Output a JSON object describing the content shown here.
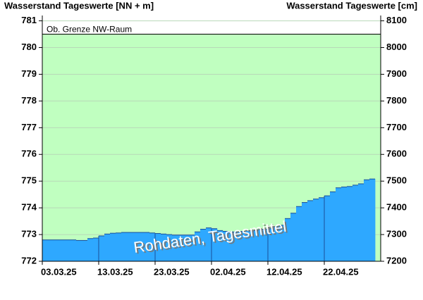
{
  "chart_data": {
    "type": "step-area",
    "y_title": "Wasserstand Tageswerte [NN + m]",
    "y2_title": "Wasserstand Tageswerte [cm]",
    "watermark": "Rohdaten, Tagesmittel",
    "threshold": {
      "value": 780.5,
      "label": "Ob. Grenze NW-Raum",
      "color": "#c0ffc0"
    },
    "color": "#2ea8ff",
    "x": [
      "03.03.25",
      "04.03.25",
      "05.03.25",
      "06.03.25",
      "07.03.25",
      "08.03.25",
      "09.03.25",
      "10.03.25",
      "11.03.25",
      "12.03.25",
      "13.03.25",
      "14.03.25",
      "15.03.25",
      "16.03.25",
      "17.03.25",
      "18.03.25",
      "19.03.25",
      "20.03.25",
      "21.03.25",
      "22.03.25",
      "23.03.25",
      "24.03.25",
      "25.03.25",
      "26.03.25",
      "27.03.25",
      "28.03.25",
      "29.03.25",
      "30.03.25",
      "31.03.25",
      "01.04.25",
      "02.04.25",
      "03.04.25",
      "04.04.25",
      "05.04.25",
      "06.04.25",
      "07.04.25",
      "08.04.25",
      "09.04.25",
      "10.04.25",
      "11.04.25",
      "12.04.25",
      "13.04.25",
      "14.04.25",
      "15.04.25",
      "16.04.25",
      "17.04.25",
      "18.04.25",
      "19.04.25",
      "20.04.25",
      "21.04.25",
      "22.04.25",
      "23.04.25",
      "24.04.25",
      "25.04.25",
      "26.04.25",
      "27.04.25",
      "28.04.25",
      "29.04.25",
      "30.04.25"
    ],
    "values": [
      772.8,
      772.8,
      772.8,
      772.8,
      772.8,
      772.8,
      772.78,
      772.78,
      772.85,
      772.87,
      772.95,
      773.02,
      773.05,
      773.06,
      773.08,
      773.08,
      773.08,
      773.08,
      773.08,
      773.06,
      773.04,
      773.02,
      773.0,
      772.98,
      772.98,
      772.98,
      772.98,
      773.1,
      773.2,
      773.25,
      773.22,
      773.15,
      773.12,
      773.1,
      773.1,
      773.12,
      773.15,
      773.15,
      773.18,
      773.2,
      773.22,
      773.3,
      773.35,
      773.6,
      773.8,
      774.05,
      774.2,
      774.27,
      774.33,
      774.38,
      774.45,
      774.6,
      774.75,
      774.78,
      774.8,
      774.85,
      774.9,
      775.05,
      775.08
    ],
    "xlim": [
      "03.03.25",
      "02.05.25"
    ],
    "xticks": [
      "03.03.25",
      "13.03.25",
      "23.03.25",
      "02.04.25",
      "12.04.25",
      "22.04.25"
    ],
    "ylim": [
      772,
      781.2
    ],
    "yticks": [
      772,
      773,
      774,
      775,
      776,
      777,
      778,
      779,
      780,
      781
    ],
    "y2lim": [
      7200,
      8120
    ],
    "y2ticks": [
      7200,
      7300,
      7400,
      7500,
      7600,
      7700,
      7800,
      7900,
      8000,
      8100
    ],
    "grid": true
  }
}
